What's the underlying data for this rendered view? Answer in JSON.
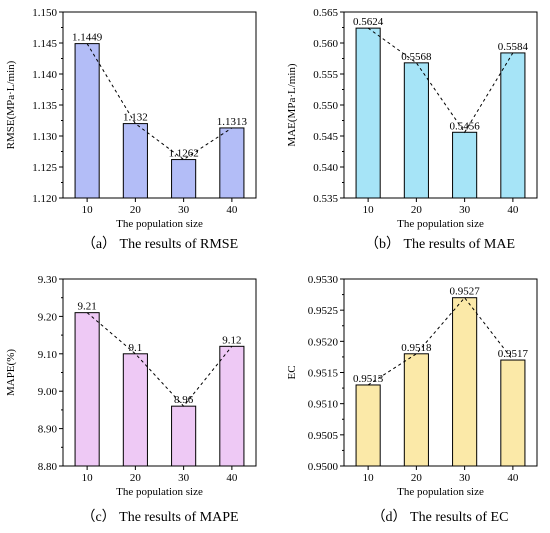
{
  "chart_data": [
    {
      "type": "bar",
      "categories": [
        "10",
        "20",
        "30",
        "40"
      ],
      "values": [
        1.1449,
        1.132,
        1.1262,
        1.1313
      ],
      "value_labels": [
        "1.1449",
        "1.132",
        "1.1262",
        "1.1313"
      ],
      "ylim": [
        1.12,
        1.15
      ],
      "yticks": [
        "1.120",
        "1.125",
        "1.130",
        "1.135",
        "1.140",
        "1.145",
        "1.150"
      ],
      "ylabel": "RMSE(MPa·L/min)",
      "xlabel": "The population size",
      "caption": "（a） The results of RMSE",
      "trend_line": "dashed",
      "bar_color": "#b3bdf7"
    },
    {
      "type": "bar",
      "categories": [
        "10",
        "20",
        "30",
        "40"
      ],
      "values": [
        0.5624,
        0.5568,
        0.5456,
        0.5584
      ],
      "value_labels": [
        "0.5624",
        "0.5568",
        "0.5456",
        "0.5584"
      ],
      "ylim": [
        0.535,
        0.565
      ],
      "yticks": [
        "0.535",
        "0.540",
        "0.545",
        "0.550",
        "0.555",
        "0.560",
        "0.565"
      ],
      "ylabel": "MAE(MPa·L/min)",
      "xlabel": "The population size",
      "caption": "（b） The results of MAE",
      "trend_line": "dashed",
      "bar_color": "#a6e4f7"
    },
    {
      "type": "bar",
      "categories": [
        "10",
        "20",
        "30",
        "40"
      ],
      "values": [
        9.21,
        9.1,
        8.96,
        9.12
      ],
      "value_labels": [
        "9.21",
        "9.1",
        "8.96",
        "9.12"
      ],
      "ylim": [
        8.8,
        9.3
      ],
      "yticks": [
        "8.80",
        "8.90",
        "9.00",
        "9.10",
        "9.20",
        "9.30"
      ],
      "ylabel": "MAPE(%)",
      "xlabel": "The population size",
      "caption": "（c） The results of MAPE",
      "trend_line": "dashed",
      "bar_color": "#eec9f5"
    },
    {
      "type": "bar",
      "categories": [
        "10",
        "20",
        "30",
        "40"
      ],
      "values": [
        0.9513,
        0.9518,
        0.9527,
        0.9517
      ],
      "value_labels": [
        "0.9513",
        "0.9518",
        "0.9527",
        "0.9517"
      ],
      "ylim": [
        0.95,
        0.953
      ],
      "yticks": [
        "0.9500",
        "0.9505",
        "0.9510",
        "0.9515",
        "0.9520",
        "0.9525",
        "0.9530"
      ],
      "ylabel": "EC",
      "xlabel": "The population size",
      "caption": "（d） The results of EC",
      "trend_line": "dashed",
      "bar_color": "#fbe9a8"
    }
  ]
}
